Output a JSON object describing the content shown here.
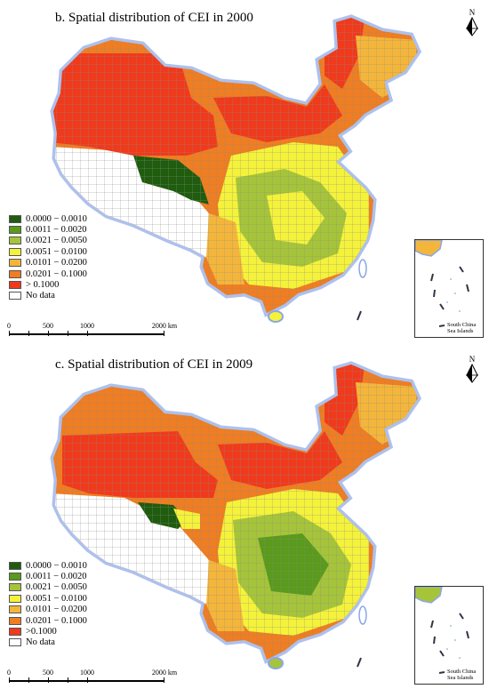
{
  "panels": [
    {
      "title": "b. Spatial distribution of CEI in 2000",
      "year": 2000,
      "legend": {
        "items": [
          {
            "label": "0.0000 − 0.0010",
            "color": "#1f5c0e"
          },
          {
            "label": "0.0011 − 0.0020",
            "color": "#5a9a1c"
          },
          {
            "label": "0.0021 − 0.0050",
            "color": "#a6c43a"
          },
          {
            "label": "0.0051 − 0.0100",
            "color": "#f4f23a"
          },
          {
            "label": "0.0101 − 0.0200",
            "color": "#f4b63a"
          },
          {
            "label": "0.0201 − 0.1000",
            "color": "#ef7d22"
          },
          {
            "label": "> 0.1000",
            "color": "#f03a1c"
          },
          {
            "label": "No data",
            "color": "#ffffff"
          }
        ]
      },
      "scale": {
        "ticks": [
          "0",
          "500",
          "1000",
          "2000 km"
        ]
      },
      "inset_label": [
        "South China",
        "Sea Islands"
      ],
      "north_label": "N"
    },
    {
      "title": "c. Spatial distribution of CEI in 2009",
      "year": 2009,
      "legend": {
        "items": [
          {
            "label": "0.0000 − 0.0010",
            "color": "#1f5c0e"
          },
          {
            "label": "0.0011 − 0.0020",
            "color": "#5a9a1c"
          },
          {
            "label": "0.0021 − 0.0050",
            "color": "#a6c43a"
          },
          {
            "label": "0.0051 − 0.0100",
            "color": "#f4f23a"
          },
          {
            "label": "0.0101 − 0.0200",
            "color": "#f4b63a"
          },
          {
            "label": "0.0201 − 0.1000",
            "color": "#ef7d22"
          },
          {
            "label": ">0.1000",
            "color": "#f03a1c"
          },
          {
            "label": "No data",
            "color": "#ffffff"
          }
        ]
      },
      "scale": {
        "ticks": [
          "0",
          "500",
          "1000",
          "2000 km"
        ]
      },
      "inset_label": [
        "South China",
        "Sea Islands"
      ],
      "north_label": "N"
    }
  ],
  "colors": {
    "border_glow": "#8aa6e6",
    "county_line": "#8a8a8a",
    "no_data": "#ffffff"
  }
}
